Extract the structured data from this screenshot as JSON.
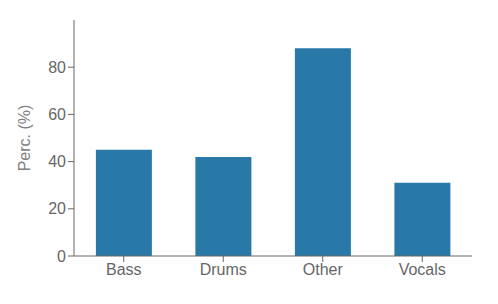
{
  "chart_data": {
    "type": "bar",
    "categories": [
      "Bass",
      "Drums",
      "Other",
      "Vocals"
    ],
    "values": [
      45.0,
      42.0,
      88.0,
      31.0
    ],
    "color": "#2878a8",
    "ylabel": "Perc. (%)",
    "ylim": [
      0,
      100
    ],
    "yticks": [
      0,
      20,
      40,
      60,
      80
    ],
    "grid": false
  }
}
